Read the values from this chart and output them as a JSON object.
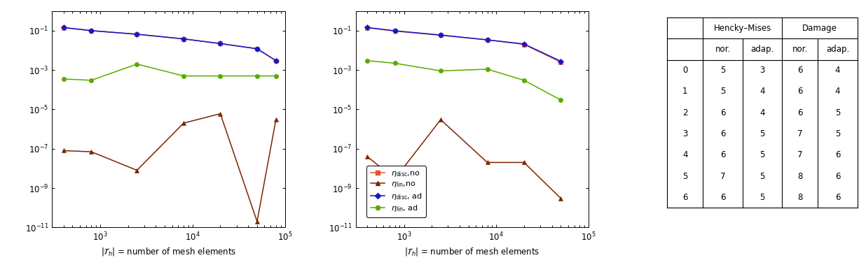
{
  "plot1": {
    "xlabel": "$|\\mathcal{T}_h|$ = number of mesh elements",
    "xlim": [
      300,
      100000
    ],
    "ylim_exp": [
      -11,
      0
    ],
    "series": {
      "disc_no": {
        "x": [
          400,
          800,
          2500,
          8000,
          20000,
          50000,
          80000
        ],
        "y": [
          0.14,
          0.1,
          0.065,
          0.038,
          0.022,
          0.012,
          0.003
        ],
        "color": "#e05828",
        "marker": "s"
      },
      "lin_no": {
        "x": [
          400,
          800,
          2500,
          8000,
          20000,
          50000,
          80000
        ],
        "y": [
          8e-08,
          7e-08,
          8e-09,
          2e-06,
          6e-06,
          2e-11,
          3e-06
        ],
        "color": "#7b2500",
        "marker": "^"
      },
      "disc_ad": {
        "x": [
          400,
          800,
          2500,
          8000,
          20000,
          50000,
          80000
        ],
        "y": [
          0.145,
          0.1,
          0.066,
          0.038,
          0.022,
          0.012,
          0.003
        ],
        "color": "#1515cc",
        "marker": "D"
      },
      "lin_ad": {
        "x": [
          400,
          800,
          2500,
          8000,
          20000,
          50000,
          80000
        ],
        "y": [
          0.00035,
          0.0003,
          0.002,
          0.0005,
          0.0005,
          0.0005,
          0.0005
        ],
        "color": "#5aaa00",
        "marker": "o"
      }
    }
  },
  "plot2": {
    "xlabel": "$|\\mathcal{T}_h|$ = number of mesh elements",
    "xlim": [
      300,
      100000
    ],
    "ylim_exp": [
      -11,
      0
    ],
    "series": {
      "disc_no": {
        "x": [
          400,
          800,
          2500,
          8000,
          20000,
          50000
        ],
        "y": [
          0.14,
          0.095,
          0.058,
          0.034,
          0.02,
          0.0025
        ],
        "color": "#e05828",
        "marker": "s"
      },
      "lin_no": {
        "x": [
          400,
          800,
          2500,
          8000,
          20000,
          50000
        ],
        "y": [
          4e-08,
          3e-09,
          3e-06,
          2e-08,
          2e-08,
          3e-10
        ],
        "color": "#7b2500",
        "marker": "^"
      },
      "disc_ad": {
        "x": [
          400,
          800,
          2500,
          8000,
          20000,
          50000
        ],
        "y": [
          0.145,
          0.098,
          0.06,
          0.034,
          0.021,
          0.0028
        ],
        "color": "#1515cc",
        "marker": "D"
      },
      "lin_ad": {
        "x": [
          400,
          800,
          2500,
          8000,
          20000,
          50000
        ],
        "y": [
          0.003,
          0.0022,
          0.0009,
          0.0011,
          0.0003,
          3e-05
        ],
        "color": "#5aaa00",
        "marker": "o"
      }
    }
  },
  "legend_labels": [
    "$\\eta_{\\mathrm{disc}}$,no",
    "$\\eta_{\\mathrm{lin}}$,no",
    "$\\eta_{\\mathrm{disc}}$, ad",
    "$\\eta_{\\mathrm{lin}}$, ad"
  ],
  "colors": {
    "disc_no": "#e05828",
    "lin_no": "#7b2500",
    "disc_ad": "#1515cc",
    "lin_ad": "#5aaa00"
  },
  "markers": {
    "disc_no": "s",
    "lin_no": "^",
    "disc_ad": "D",
    "lin_ad": "o"
  },
  "table": {
    "rows": [
      [
        0,
        5,
        3,
        6,
        4
      ],
      [
        1,
        5,
        4,
        6,
        4
      ],
      [
        2,
        6,
        4,
        6,
        5
      ],
      [
        3,
        6,
        5,
        7,
        5
      ],
      [
        4,
        6,
        5,
        7,
        6
      ],
      [
        5,
        7,
        5,
        8,
        6
      ],
      [
        6,
        6,
        5,
        8,
        6
      ]
    ]
  }
}
